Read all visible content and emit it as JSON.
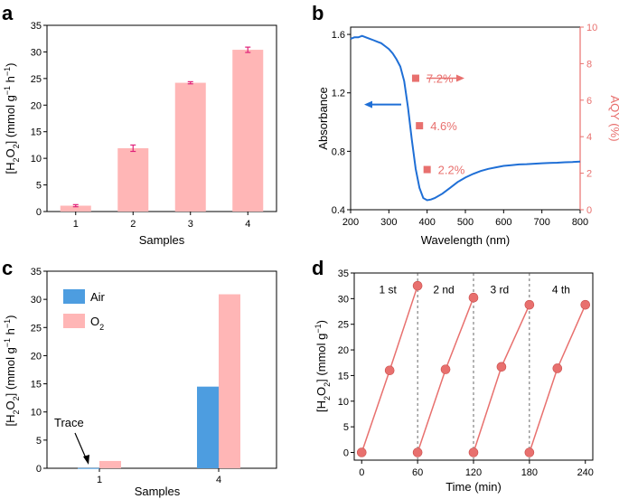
{
  "chart_data": [
    {
      "panel": "a",
      "type": "bar",
      "xlabel": "Samples",
      "ylabel": "[H2O2] (mmol g-1 h-1)",
      "ylabel_parts": [
        "[H",
        "2",
        "O",
        "2",
        "] (mmol g",
        "−1",
        " h",
        "−1",
        ")"
      ],
      "ylim": [
        0,
        35
      ],
      "yticks": [
        0,
        5,
        10,
        15,
        20,
        25,
        30,
        35
      ],
      "categories": [
        "1",
        "2",
        "3",
        "4"
      ],
      "values": [
        1.1,
        11.9,
        24.2,
        30.4
      ],
      "errors": [
        0.2,
        0.6,
        0.2,
        0.5
      ],
      "bar_color": "#ffb6b6",
      "error_color": "#e0227a"
    },
    {
      "panel": "b",
      "type": "line",
      "xlabel": "Wavelength (nm)",
      "ylabel": "Absorbance",
      "y2label": "AQY (%)",
      "xlim": [
        200,
        800
      ],
      "xticks": [
        200,
        300,
        400,
        500,
        600,
        700,
        800
      ],
      "ylim": [
        0.4,
        1.65
      ],
      "yticks": [
        "0.4",
        "0.8",
        "1.2",
        "1.6"
      ],
      "y2lim": [
        0,
        10
      ],
      "y2ticks": [
        0,
        2,
        4,
        6,
        8,
        10
      ],
      "absorbance": {
        "x": [
          200,
          210,
          220,
          230,
          240,
          250,
          260,
          270,
          280,
          290,
          300,
          310,
          320,
          330,
          340,
          350,
          360,
          370,
          380,
          390,
          400,
          410,
          420,
          440,
          460,
          480,
          500,
          520,
          540,
          560,
          580,
          600,
          620,
          640,
          660,
          680,
          700,
          720,
          740,
          760,
          780,
          800
        ],
        "y": [
          1.57,
          1.58,
          1.58,
          1.59,
          1.58,
          1.57,
          1.56,
          1.55,
          1.54,
          1.52,
          1.5,
          1.47,
          1.43,
          1.38,
          1.28,
          1.1,
          0.88,
          0.68,
          0.55,
          0.48,
          0.465,
          0.47,
          0.48,
          0.51,
          0.55,
          0.59,
          0.62,
          0.645,
          0.665,
          0.68,
          0.69,
          0.7,
          0.705,
          0.71,
          0.712,
          0.715,
          0.718,
          0.72,
          0.722,
          0.725,
          0.727,
          0.73
        ],
        "color": "#1f6fd6"
      },
      "aqy": {
        "x": [
          370,
          380,
          400
        ],
        "y": [
          7.2,
          4.6,
          2.2
        ],
        "labels": [
          "7.2%",
          "4.6%",
          "2.2%"
        ],
        "color": "#e8706e"
      },
      "arrow_left_color": "#1f6fd6",
      "arrow_right_color": "#e8706e"
    },
    {
      "panel": "c",
      "type": "bar",
      "xlabel": "Samples",
      "ylabel": "[H2O2] (mmol g-1 h-1)",
      "ylabel_parts": [
        "[H",
        "2",
        "O",
        "2",
        "] (mmol g",
        "−1",
        " h",
        "−1",
        ")"
      ],
      "ylim": [
        0,
        35
      ],
      "yticks": [
        0,
        5,
        10,
        15,
        20,
        25,
        30,
        35
      ],
      "categories": [
        "1",
        "4"
      ],
      "series": [
        {
          "name": "Air",
          "values": [
            0.05,
            14.5
          ],
          "color": "#4d9de0"
        },
        {
          "name": "O2",
          "name_parts": [
            "O",
            "2"
          ],
          "values": [
            1.3,
            30.9
          ],
          "color": "#ffb6b6"
        }
      ],
      "annotation": "Trace"
    },
    {
      "panel": "d",
      "type": "line",
      "xlabel": "Time (min)",
      "ylabel": "[H2O2] (mmol g-1)",
      "ylabel_parts": [
        "[H",
        "2",
        "O",
        "2",
        "] (mmol g",
        "−1",
        ")"
      ],
      "xlim": [
        -8,
        248
      ],
      "xticks": [
        0,
        60,
        120,
        180,
        240
      ],
      "ylim": [
        -1.5,
        35
      ],
      "yticks": [
        0,
        5,
        10,
        15,
        20,
        25,
        30,
        35
      ],
      "cycle_boundaries": [
        60,
        120,
        180
      ],
      "color": "#e8706e",
      "series": [
        {
          "name": "1 st",
          "x": [
            0,
            30,
            60
          ],
          "y": [
            0,
            16,
            32.5
          ]
        },
        {
          "name": "2 nd",
          "x": [
            60,
            90,
            120
          ],
          "y": [
            0,
            16.2,
            30.2
          ]
        },
        {
          "name": "3 rd",
          "x": [
            120,
            150,
            180
          ],
          "y": [
            0,
            16.7,
            28.8
          ]
        },
        {
          "name": "4 th",
          "x": [
            180,
            210,
            240
          ],
          "y": [
            0,
            16.4,
            28.8
          ]
        }
      ]
    }
  ]
}
